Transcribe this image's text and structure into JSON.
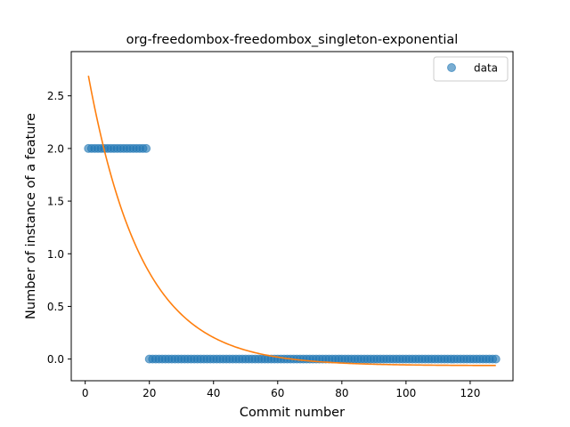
{
  "chart_data": {
    "type": "scatter",
    "title": "org-freedombox-freedombox_singleton-exponential",
    "xlabel": "Commit number",
    "ylabel": "Number of instance of a feature",
    "xlim": [
      -4.35,
      133.35
    ],
    "ylim": [
      -0.206,
      2.92
    ],
    "x_ticks": [
      0,
      20,
      40,
      60,
      80,
      100,
      120
    ],
    "x_tick_labels": [
      "0",
      "20",
      "40",
      "60",
      "80",
      "100",
      "120"
    ],
    "y_ticks": [
      0.0,
      0.5,
      1.0,
      1.5,
      2.0,
      2.5
    ],
    "y_tick_labels": [
      "0.0",
      "0.5",
      "1.0",
      "1.5",
      "2.0",
      "2.5"
    ],
    "grid": false,
    "legend_position": "top-right",
    "series": [
      {
        "name": "data",
        "kind": "scatter",
        "color": "#1f77b4",
        "segments": [
          {
            "x_start": 1,
            "x_end": 19,
            "y": 2.0
          },
          {
            "x_start": 20,
            "x_end": 128,
            "y": 0.0
          }
        ]
      },
      {
        "kind": "line",
        "color": "#ff7f0e",
        "model": "exponential",
        "x_range": [
          1,
          128
        ],
        "a": 2.9225,
        "b": 0.0598,
        "c": -0.0625
      }
    ]
  }
}
